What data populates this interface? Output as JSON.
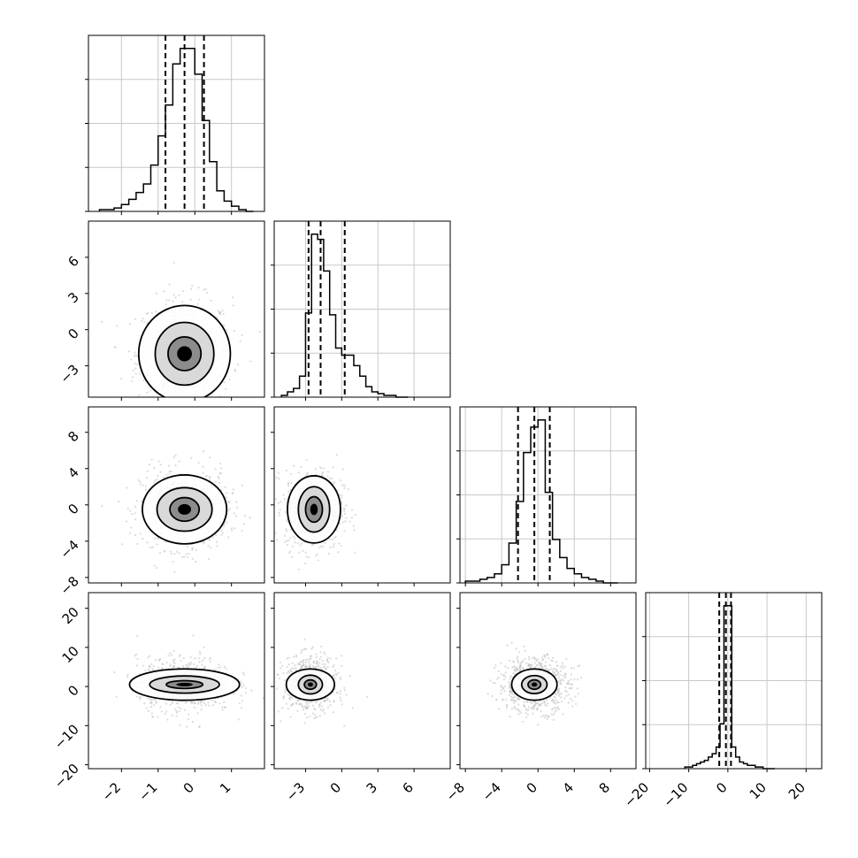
{
  "chart_data": {
    "type": "corner",
    "title": "",
    "dimensions": 4,
    "axes": [
      {
        "range": [
          -2.9,
          1.9
        ],
        "ticks": [
          -2,
          -1,
          0,
          1
        ],
        "tick_labels": [
          "−2",
          "−1",
          "0",
          "1"
        ]
      },
      {
        "range": [
          -5.6,
          9.0
        ],
        "ticks": [
          -3,
          0,
          3,
          6
        ],
        "tick_labels": [
          "−3",
          "0",
          "3",
          "6"
        ]
      },
      {
        "range": [
          -8.6,
          10.8
        ],
        "ticks": [
          -8,
          -4,
          0,
          4,
          8
        ],
        "tick_labels": [
          "−8",
          "−4",
          "0",
          "4",
          "8"
        ]
      },
      {
        "range": [
          -21.0,
          24.0
        ],
        "ticks": [
          -20,
          -10,
          0,
          10,
          20
        ],
        "tick_labels": [
          "−20",
          "−10",
          "0",
          "10",
          "20"
        ]
      }
    ],
    "quantiles": [
      [
        -0.8,
        -0.28,
        0.25
      ],
      [
        -2.75,
        -1.75,
        0.25
      ],
      [
        -2.2,
        -0.4,
        1.3
      ],
      [
        -2.2,
        -0.5,
        0.8
      ]
    ],
    "histograms": [
      {
        "bin_edges": [
          -2.6,
          -2.4,
          -2.2,
          -2.0,
          -1.8,
          -1.6,
          -1.4,
          -1.2,
          -1.0,
          -0.8,
          -0.6,
          -0.4,
          -0.2,
          0.0,
          0.2,
          0.4,
          0.6,
          0.8,
          1.0,
          1.2,
          1.4,
          1.6
        ],
        "counts": [
          1,
          1,
          2,
          4,
          7,
          11,
          16,
          27,
          44,
          62,
          86,
          95,
          95,
          80,
          53,
          29,
          12,
          6,
          3,
          1,
          0
        ]
      },
      {
        "bin_edges": [
          -5.0,
          -4.5,
          -4.0,
          -3.5,
          -3.0,
          -2.5,
          -2.0,
          -1.5,
          -1.0,
          -0.5,
          0.0,
          0.5,
          1.0,
          1.5,
          2.0,
          2.5,
          3.0,
          3.5,
          4.0,
          4.5,
          5.0,
          5.5
        ],
        "counts": [
          1,
          3,
          5,
          12,
          48,
          93,
          90,
          72,
          47,
          28,
          24,
          24,
          18,
          12,
          6,
          3,
          2,
          1,
          1,
          0,
          0
        ]
      },
      {
        "bin_edges": [
          -8.0,
          -7.2,
          -6.4,
          -5.6,
          -4.8,
          -4.0,
          -3.2,
          -2.4,
          -1.6,
          -0.8,
          0.0,
          0.8,
          1.6,
          2.4,
          3.2,
          4.0,
          4.8,
          5.6,
          6.4,
          7.2,
          8.0,
          8.8
        ],
        "counts": [
          1,
          1,
          2,
          3,
          5,
          10,
          22,
          45,
          72,
          86,
          90,
          50,
          24,
          14,
          8,
          5,
          3,
          2,
          1,
          0,
          0
        ]
      },
      {
        "bin_edges": [
          -11,
          -10,
          -9,
          -8,
          -7,
          -6,
          -5,
          -4,
          -3,
          -2,
          -1,
          0,
          1,
          2,
          3,
          4,
          5,
          6,
          7,
          8,
          9,
          10,
          11,
          12
        ],
        "counts": [
          1,
          1,
          2,
          3,
          4,
          5,
          7,
          9,
          13,
          27,
          98,
          98,
          13,
          7,
          4,
          3,
          2,
          2,
          1,
          1,
          0,
          0,
          0
        ]
      }
    ],
    "pairs": [
      {
        "i": 1,
        "j": 0,
        "center": [
          -0.28,
          -2.0
        ],
        "spread": [
          0.65,
          2.3
        ],
        "levels": [
          [
            0.45,
            1.4
          ],
          [
            0.8,
            2.6
          ],
          [
            1.25,
            4.0
          ]
        ]
      },
      {
        "i": 2,
        "j": 0,
        "center": [
          -0.28,
          -0.5
        ],
        "spread": [
          0.6,
          2.2
        ],
        "levels": [
          [
            0.4,
            1.3
          ],
          [
            0.75,
            2.4
          ],
          [
            1.15,
            3.8
          ]
        ]
      },
      {
        "i": 2,
        "j": 1,
        "center": [
          -2.3,
          -0.5
        ],
        "spread": [
          1.2,
          2.2
        ],
        "levels": [
          [
            0.7,
            1.4
          ],
          [
            1.3,
            2.5
          ],
          [
            2.2,
            3.7
          ]
        ]
      },
      {
        "i": 3,
        "j": 0,
        "center": [
          -0.28,
          0.5
        ],
        "spread": [
          0.65,
          3.5
        ],
        "levels": [
          [
            0.5,
            1.0
          ],
          [
            0.95,
            2.2
          ],
          [
            1.5,
            4.0
          ]
        ]
      },
      {
        "i": 3,
        "j": 1,
        "center": [
          -2.6,
          0.5
        ],
        "spread": [
          1.1,
          3.5
        ],
        "levels": [
          [
            0.5,
            1.2
          ],
          [
            1.0,
            2.4
          ],
          [
            2.0,
            4.0
          ]
        ]
      },
      {
        "i": 3,
        "j": 2,
        "center": [
          -0.4,
          0.5
        ],
        "spread": [
          2.0,
          3.5
        ],
        "levels": [
          [
            0.7,
            1.2
          ],
          [
            1.4,
            2.3
          ],
          [
            2.5,
            4.0
          ]
        ]
      }
    ]
  }
}
